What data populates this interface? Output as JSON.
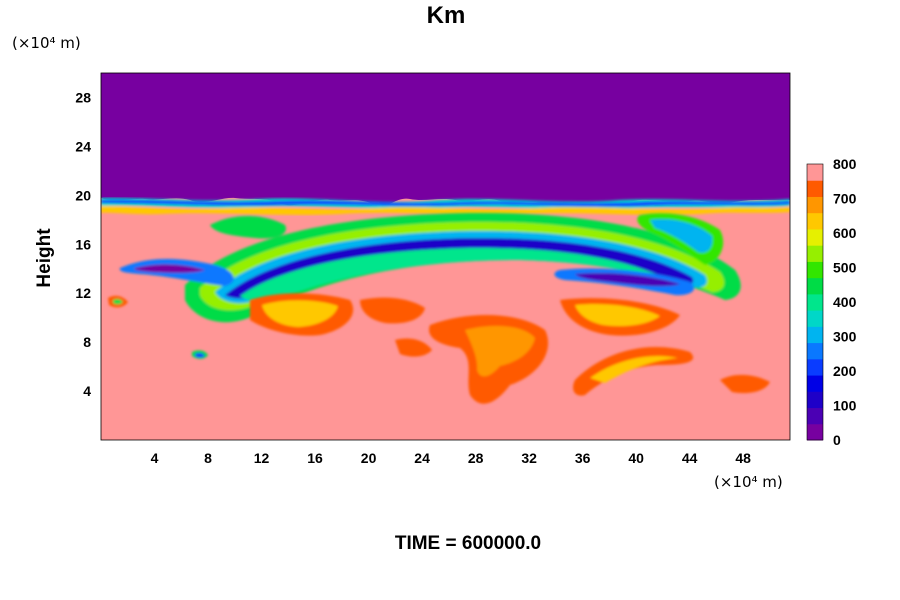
{
  "chart_data": {
    "type": "heatmap",
    "title": "Km",
    "xlabel": "",
    "ylabel": "Height",
    "x_unit": "(×10⁴ m)",
    "y_unit": "(×10⁴ m)",
    "xlim": [
      0,
      51.5
    ],
    "ylim": [
      0,
      30
    ],
    "xticks": [
      4,
      8,
      12,
      16,
      20,
      24,
      28,
      32,
      36,
      40,
      44,
      48
    ],
    "yticks": [
      4,
      8,
      12,
      16,
      20,
      24,
      28
    ],
    "colorbar": {
      "min": 0,
      "max": 800,
      "step": 50,
      "tick_labels": [
        "0",
        "100",
        "200",
        "300",
        "400",
        "500",
        "600",
        "700",
        "800"
      ],
      "colors": [
        "#7700a0",
        "#4b00b4",
        "#1e00c8",
        "#0000e6",
        "#0a3cff",
        "#0a78ff",
        "#00b4f0",
        "#00d7c8",
        "#00e68c",
        "#00dc46",
        "#32e600",
        "#96ef00",
        "#e6f000",
        "#ffc800",
        "#ff9600",
        "#ff5a00",
        "#ff9696"
      ]
    },
    "field_description_values": {
      "above_z_20": 0,
      "background_below_20": 800
    },
    "timestamp_label": "TIME = 600000.0"
  },
  "title": "Km",
  "y_unit": "(×10⁴ m)",
  "x_unit": "(×10⁴ m)",
  "ylabel": "Height",
  "time_label": "TIME = 600000.0"
}
